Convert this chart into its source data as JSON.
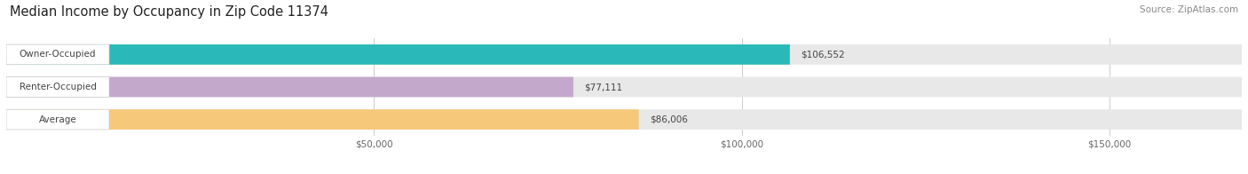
{
  "title": "Median Income by Occupancy in Zip Code 11374",
  "source": "Source: ZipAtlas.com",
  "categories": [
    "Owner-Occupied",
    "Renter-Occupied",
    "Average"
  ],
  "values": [
    106552,
    77111,
    86006
  ],
  "bar_colors": [
    "#2ab8b8",
    "#c4a8cc",
    "#f5c87a"
  ],
  "value_labels": [
    "$106,552",
    "$77,111",
    "$86,006"
  ],
  "xlim": [
    0,
    168000
  ],
  "xticks": [
    50000,
    100000,
    150000
  ],
  "xtick_labels": [
    "$50,000",
    "$100,000",
    "$150,000"
  ],
  "title_fontsize": 10.5,
  "source_fontsize": 7.5,
  "label_fontsize": 7.5,
  "value_fontsize": 7.5,
  "bar_height": 0.62,
  "bar_gap": 0.18,
  "background_color": "#ffffff",
  "bar_bg_color": "#e8e8e8",
  "white_cap_color": "#ffffff",
  "grid_color": "#cccccc",
  "text_color": "#444444"
}
